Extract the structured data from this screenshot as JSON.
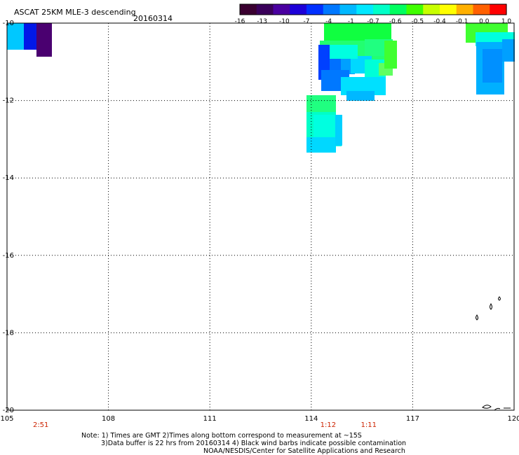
{
  "header": {
    "title": "ASCAT 25KM MLE-3 descending",
    "date": "20160314"
  },
  "colorbar": {
    "ticks": [
      "-16",
      "-13",
      "-10",
      "-7",
      "-4",
      "-1",
      "-0.7",
      "-0.6",
      "-0.5",
      "-0.4",
      "-0.1",
      "0.0",
      "1.0"
    ],
    "colors": [
      "#3a0030",
      "#3a005a",
      "#4a00a0",
      "#1d00d8",
      "#0030ff",
      "#0078ff",
      "#00b8ff",
      "#00e8ff",
      "#00ffc8",
      "#00ff60",
      "#40ff00",
      "#c8ff00",
      "#ffff00",
      "#ffb000",
      "#ff6000",
      "#ff0000"
    ]
  },
  "map": {
    "lon_range": [
      105,
      120
    ],
    "lat_range": [
      -20,
      -10
    ],
    "x_ticks": [
      "105",
      "108",
      "111",
      "114",
      "117",
      "120"
    ],
    "y_ticks": [
      "-10",
      "-12",
      "-14",
      "-16",
      "-18",
      "-20"
    ],
    "times": [
      {
        "label": "2:51",
        "lon": 106.0
      },
      {
        "label": "1:12",
        "lon": 114.5
      },
      {
        "label": "1:11",
        "lon": 115.7
      }
    ]
  },
  "notes": {
    "line1": "Note: 1) Times are GMT 2)Times along bottom correspond to measurement at ~15S",
    "line2": "3)Data buffer is 22 hrs from 20160314 4) Black wind barbs indicate possible contamination",
    "line3": "NOAA/NESDIS/Center for Satellite Applications and Research"
  }
}
